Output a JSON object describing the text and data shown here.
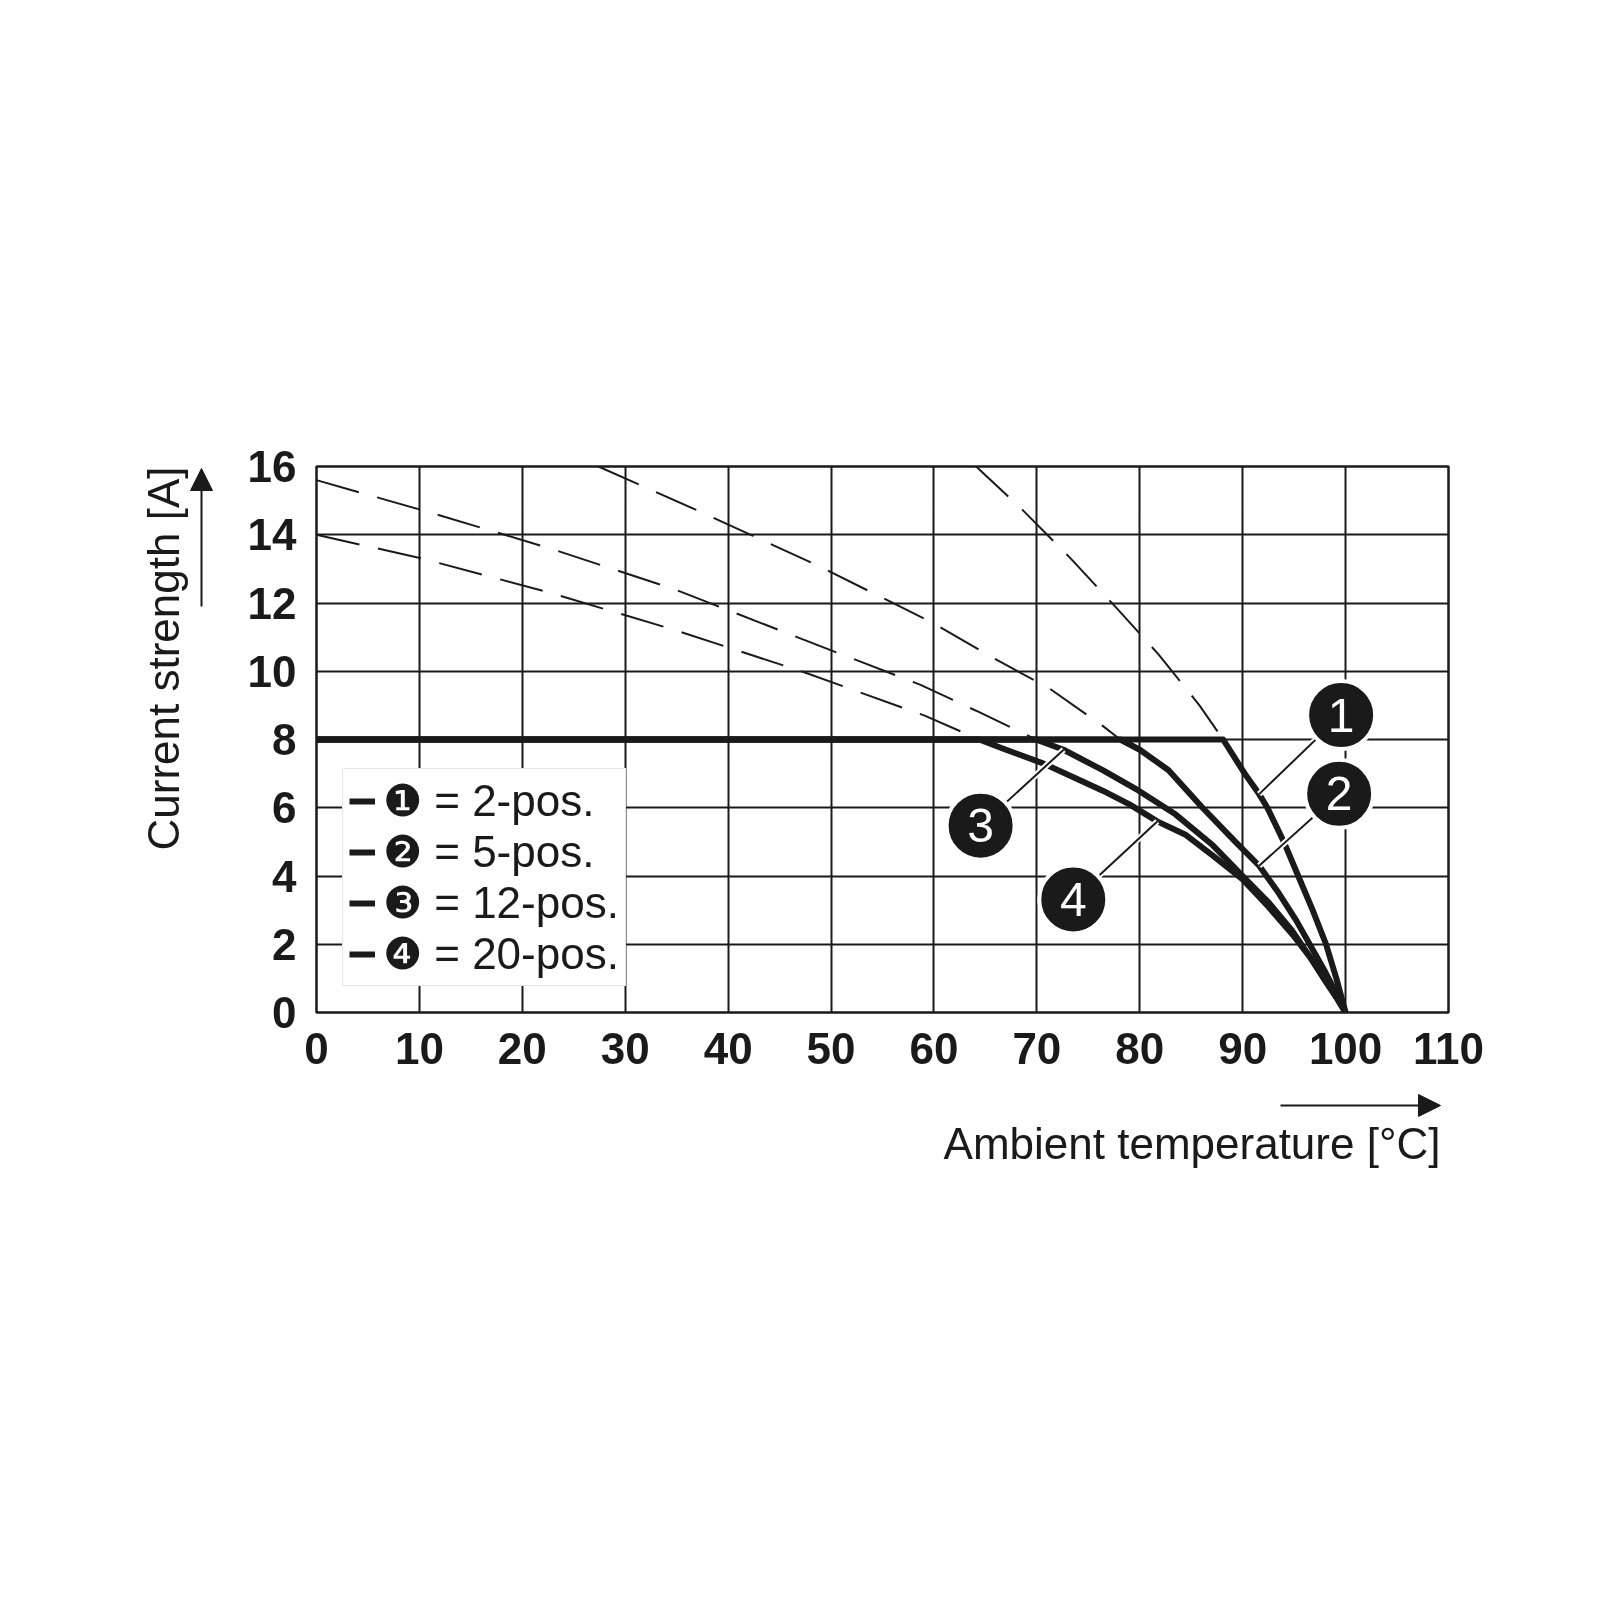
{
  "chart_data": {
    "type": "line",
    "xlabel": "Ambient temperature [°C]",
    "ylabel": "Current strength [A]",
    "xlim": [
      0,
      110
    ],
    "xticks": [
      0,
      10,
      20,
      30,
      40,
      50,
      60,
      70,
      80,
      90,
      100,
      110
    ],
    "ylim": [
      0,
      16
    ],
    "yticks": [
      0,
      2,
      4,
      6,
      8,
      10,
      12,
      14,
      16
    ],
    "grid": true,
    "legend": "bottom left",
    "series": [
      {
        "name": "❶ = 2-pos.",
        "color": "#1a1a1a",
        "line_style": "solid",
        "x": [
          0,
          88.1,
          90.2,
          91.6,
          92.4,
          94.0,
          95.4,
          96.8,
          98.1,
          99.1,
          100
        ],
        "values": [
          8,
          8,
          7.0,
          6.4,
          6.0,
          5.0,
          4.0,
          3.0,
          2.0,
          1.0,
          0
        ]
      },
      {
        "name": "❷ = 5-pos.",
        "color": "#1a1a1a",
        "line_style": "solid",
        "x": [
          0,
          78.1,
          80.0,
          82.8,
          86.1,
          89.3,
          91.6,
          93.5,
          95.2,
          96.7,
          98.0,
          99.2,
          100
        ],
        "values": [
          8,
          8,
          7.7,
          7.1,
          6.0,
          5.0,
          4.3,
          3.5,
          2.7,
          1.9,
          1.2,
          0.5,
          0
        ]
      },
      {
        "name": "❸ = 12-pos.",
        "color": "#1a1a1a",
        "line_style": "solid",
        "x": [
          0,
          69.9,
          72.6,
          76.4,
          79.9,
          83.5,
          87.1,
          90.0,
          92.6,
          94.8,
          96.6,
          98.1,
          99.2,
          100
        ],
        "values": [
          8,
          8,
          7.7,
          7.1,
          6.5,
          5.8,
          4.9,
          4.0,
          3.2,
          2.4,
          1.6,
          0.9,
          0.4,
          0
        ]
      },
      {
        "name": "❹ = 20-pos.",
        "color": "#1a1a1a",
        "line_style": "solid",
        "x": [
          0,
          64.4,
          67.0,
          70.6,
          73.5,
          76.4,
          79.0,
          81.7,
          84.5,
          87.1,
          90.0,
          92.5,
          94.8,
          96.6,
          98.1,
          99.2,
          100
        ],
        "values": [
          8,
          8,
          7.7,
          7.3,
          6.9,
          6.5,
          6.1,
          5.6,
          5.2,
          4.6,
          3.9,
          3.1,
          2.3,
          1.6,
          0.9,
          0.4,
          0
        ]
      },
      {
        "color": "#1a1a1a",
        "line_style": "dashed",
        "x": [
          64.1,
          68.7,
          73.3,
          77.6,
          81.8,
          85.8,
          88.1
        ],
        "values": [
          16,
          14.7,
          13.3,
          11.9,
          10.5,
          9.0,
          8.0
        ]
      },
      {
        "color": "#1a1a1a",
        "line_style": "dashed",
        "x": [
          27.4,
          37.1,
          48.7,
          60.0,
          65.7,
          71.2,
          76.4,
          78.1
        ],
        "values": [
          16,
          14.7,
          13.1,
          11.4,
          10.4,
          9.5,
          8.4,
          8.0
        ]
      },
      {
        "color": "#1a1a1a",
        "line_style": "dashed",
        "x": [
          0,
          10.5,
          22.7,
          34.8,
          46.7,
          58.7,
          64.4,
          69.9
        ],
        "values": [
          15.6,
          14.7,
          13.6,
          12.4,
          11.0,
          9.6,
          8.8,
          8.0
        ]
      },
      {
        "color": "#1a1a1a",
        "line_style": "dashed",
        "x": [
          0,
          10.3,
          22.7,
          34.9,
          47.1,
          59.1,
          64.4
        ],
        "values": [
          14.0,
          13.3,
          12.3,
          11.2,
          10.0,
          8.7,
          8.0
        ]
      }
    ],
    "annotations": [
      {
        "text": "1",
        "x": 91.6,
        "y": 6.4
      },
      {
        "text": "2",
        "x": 91.6,
        "y": 4.3
      },
      {
        "text": "3",
        "x": 72.6,
        "y": 7.7
      },
      {
        "text": "4",
        "x": 81.7,
        "y": 5.6
      }
    ]
  }
}
